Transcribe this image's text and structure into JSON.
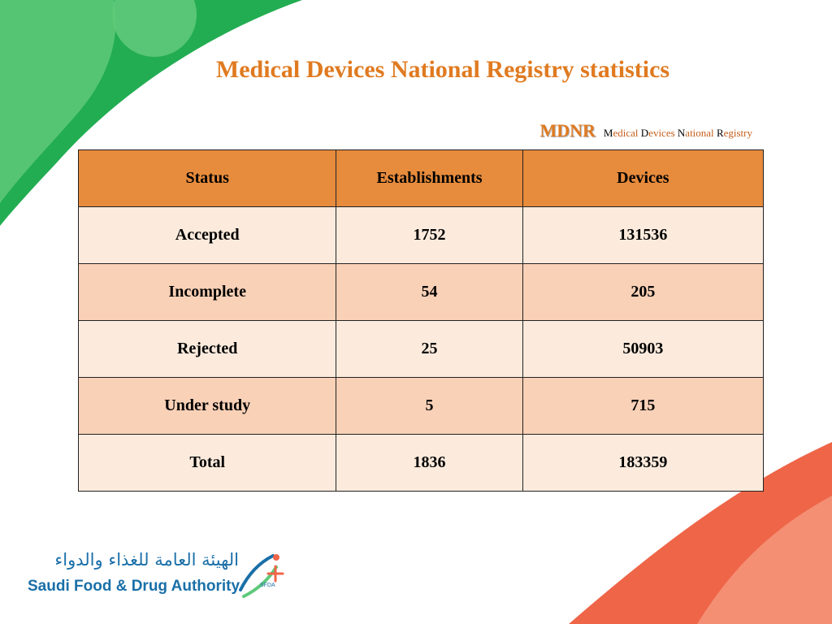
{
  "slide": {
    "title": "Medical Devices National Registry statistics"
  },
  "mdnr": {
    "abbr": "MDNR",
    "full": [
      {
        "initial": "M",
        "rest": "edical "
      },
      {
        "initial": "D",
        "rest": "evices "
      },
      {
        "initial": "N",
        "rest": "ational "
      },
      {
        "initial": "R",
        "rest": "egistry"
      }
    ]
  },
  "table": {
    "headers": [
      "Status",
      "Establishments",
      "Devices"
    ],
    "rows": [
      [
        "Accepted",
        "1752",
        "131536"
      ],
      [
        "Incomplete",
        "54",
        "205"
      ],
      [
        "Rejected",
        "25",
        "50903"
      ],
      [
        "Under study",
        "5",
        "715"
      ],
      [
        "Total",
        "1836",
        "183359"
      ]
    ]
  },
  "logo": {
    "arabic": "الهيئة العامة للغذاء والدواء",
    "english": "Saudi Food & Drug Authority",
    "mark_text": "SFDA"
  },
  "colors": {
    "title": "#e07a20",
    "mdnr_abbr": "#e07a20",
    "mdnr_rest": "#c65f1c",
    "header_bg": "#e78b3c",
    "row_light": "#fcebdd",
    "row_dark": "#f9d1b7",
    "green_dark": "#23ad52",
    "green_light": "#5ec97a",
    "red_dark": "#ef6548",
    "red_light": "#f59a7f",
    "logo_blue": "#1a6fa8"
  },
  "icons": {
    "logo_mark": "sfda-logo-icon"
  }
}
